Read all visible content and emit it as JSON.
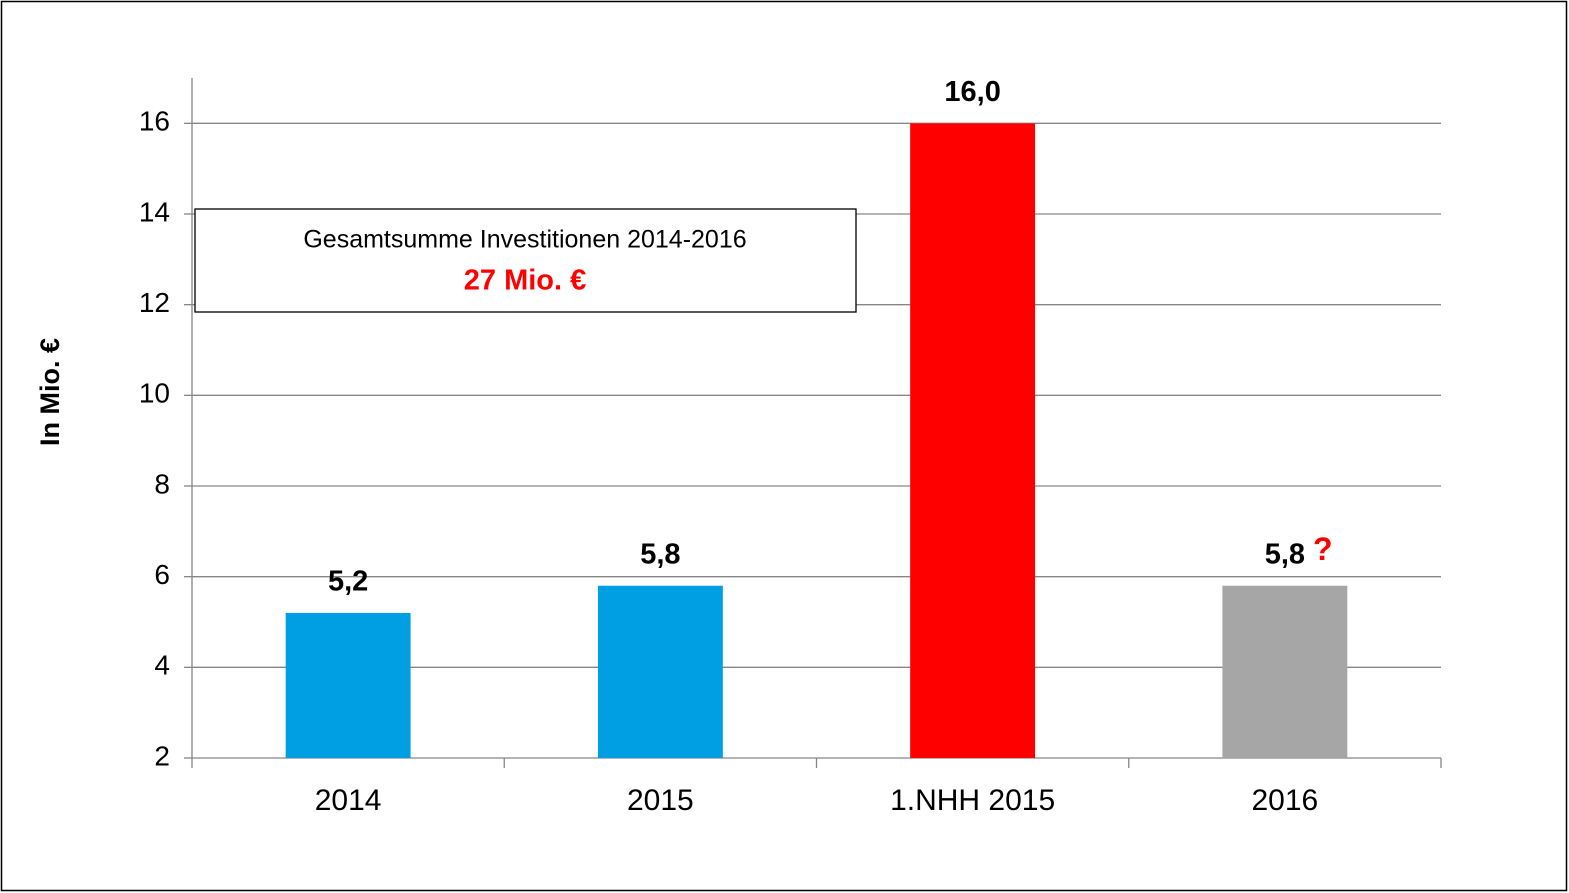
{
  "chart_data": {
    "type": "bar",
    "y_label": "In Mio. €",
    "categories": [
      "2014",
      "2015",
      "1.NHH 2015",
      "2016"
    ],
    "values": [
      5.2,
      5.8,
      16.0,
      5.8
    ],
    "value_labels": [
      "5,2",
      "5,8",
      "16,0",
      "5,8"
    ],
    "colors": [
      "#009fe3",
      "#009fe3",
      "#ff0000",
      "#a6a6a6"
    ],
    "ylim": [
      2,
      17
    ],
    "yticks": [
      2,
      4,
      6,
      8,
      10,
      12,
      14,
      16
    ],
    "grid": true,
    "annotation_box": {
      "title": "Gesamtsumme Investitionen 2014-2016",
      "value": "27 Mio. €"
    },
    "note": "?"
  }
}
